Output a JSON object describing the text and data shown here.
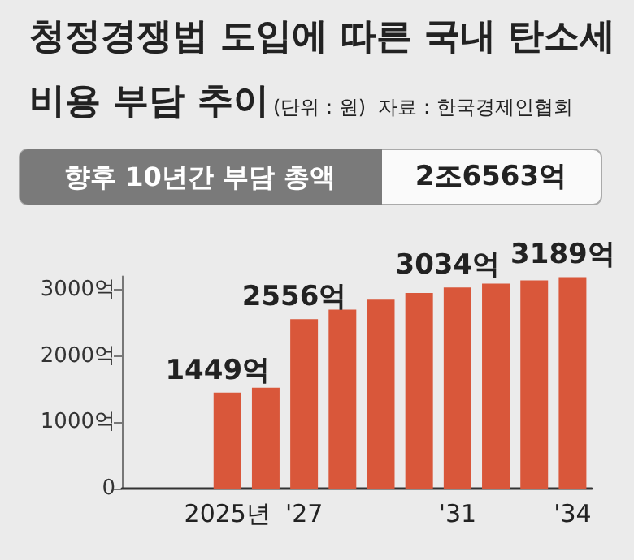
{
  "chart_data": {
    "type": "bar",
    "title": "청정경쟁법 도입에 따른 국내 탄소세 비용 부담 추이",
    "subtitle": "(단위 : 원)  자료 : 한국경제인협회",
    "annotations": [
      "향후 10년간 부담 총액",
      "2조6563억"
    ],
    "categories": [
      "2025년",
      null,
      "'27",
      null,
      null,
      null,
      "'31",
      null,
      null,
      "'34"
    ],
    "values": [
      1449,
      1520,
      2556,
      2700,
      2850,
      2950,
      3034,
      3090,
      3140,
      3189
    ],
    "value_labels": [
      "1449억",
      null,
      "2556억",
      null,
      null,
      null,
      "3034억",
      null,
      null,
      "3189억"
    ],
    "color": "#d9573a",
    "ylim": [
      0,
      3200
    ],
    "yticks": [
      0,
      {
        "value": 1000,
        "label": "1000억"
      },
      {
        "value": 2000,
        "label": "2000억"
      },
      {
        "value": 3000,
        "label": "3000억"
      }
    ],
    "grid": false
  }
}
